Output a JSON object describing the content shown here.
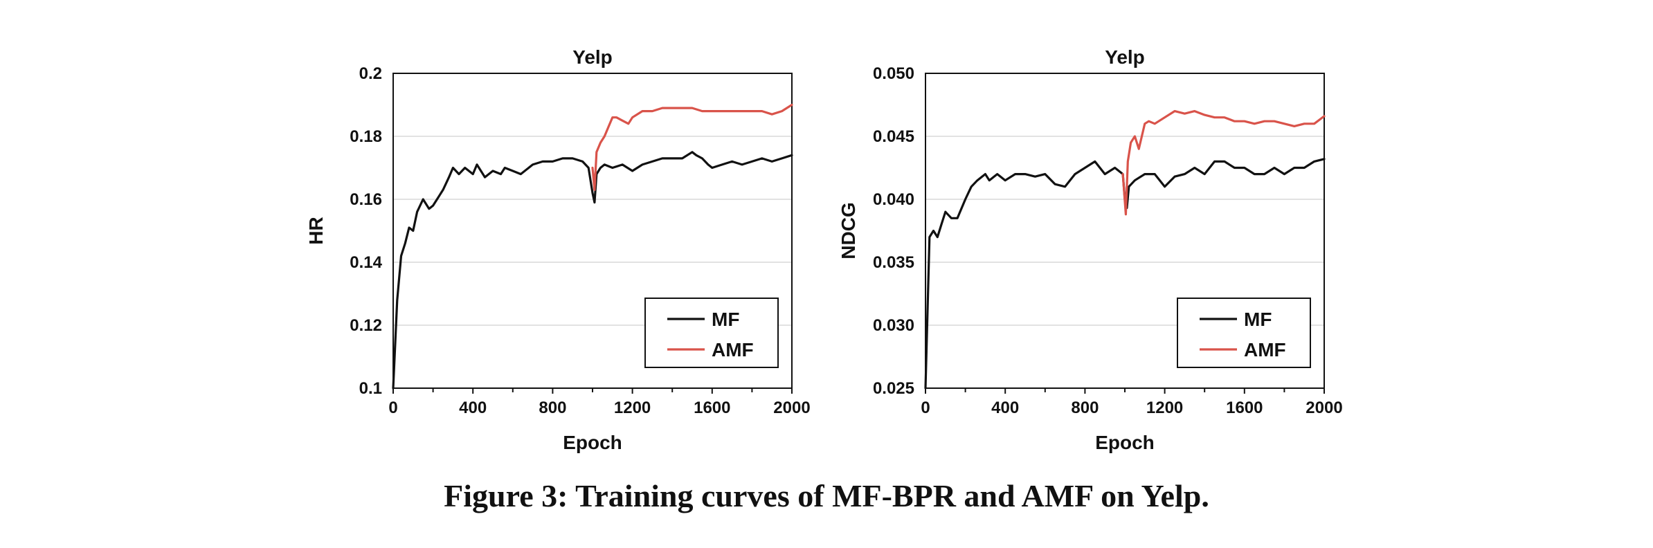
{
  "figure": {
    "caption": "Figure 3: Training curves of MF-BPR and AMF on Yelp."
  },
  "colors": {
    "MF": "#111111",
    "AMF": "#d9534a",
    "grid": "#d9d9d9",
    "frame": "#111111"
  },
  "chart_data": [
    {
      "type": "line",
      "title": "Yelp",
      "xlabel": "Epoch",
      "ylabel": "HR",
      "xlim": [
        0,
        2000
      ],
      "ylim": [
        0.1,
        0.2
      ],
      "x_ticks": [
        0,
        400,
        800,
        1200,
        1600,
        2000
      ],
      "y_ticks": [
        0.1,
        0.12,
        0.14,
        0.16,
        0.18,
        0.2
      ],
      "y_tick_labels": [
        "0.1",
        "0.12",
        "0.14",
        "0.16",
        "0.18",
        "0.2"
      ],
      "grid": "horizontal",
      "legend": {
        "position": "bottom-right",
        "entries": [
          "MF",
          "AMF"
        ]
      },
      "series": [
        {
          "name": "MF",
          "color": "#111111",
          "x": [
            0,
            20,
            40,
            60,
            80,
            100,
            120,
            150,
            180,
            200,
            250,
            280,
            300,
            330,
            360,
            400,
            420,
            460,
            500,
            540,
            560,
            600,
            640,
            700,
            750,
            800,
            850,
            900,
            950,
            980,
            1000,
            1010,
            1020,
            1040,
            1060,
            1100,
            1150,
            1200,
            1250,
            1300,
            1350,
            1400,
            1450,
            1500,
            1520,
            1550,
            1580,
            1600,
            1650,
            1700,
            1750,
            1800,
            1850,
            1900,
            1950,
            2000
          ],
          "y": [
            0.1,
            0.128,
            0.142,
            0.146,
            0.151,
            0.15,
            0.156,
            0.16,
            0.157,
            0.158,
            0.163,
            0.167,
            0.17,
            0.168,
            0.17,
            0.168,
            0.171,
            0.167,
            0.169,
            0.168,
            0.17,
            0.169,
            0.168,
            0.171,
            0.172,
            0.172,
            0.173,
            0.173,
            0.172,
            0.17,
            0.162,
            0.159,
            0.168,
            0.17,
            0.171,
            0.17,
            0.171,
            0.169,
            0.171,
            0.172,
            0.173,
            0.173,
            0.173,
            0.175,
            0.174,
            0.173,
            0.171,
            0.17,
            0.171,
            0.172,
            0.171,
            0.172,
            0.173,
            0.172,
            0.173,
            0.174
          ]
        },
        {
          "name": "AMF",
          "color": "#d9534a",
          "x": [
            1000,
            1010,
            1020,
            1040,
            1060,
            1080,
            1100,
            1120,
            1150,
            1180,
            1200,
            1250,
            1300,
            1350,
            1400,
            1450,
            1500,
            1550,
            1600,
            1650,
            1700,
            1750,
            1800,
            1850,
            1900,
            1950,
            2000
          ],
          "y": [
            0.17,
            0.163,
            0.175,
            0.178,
            0.18,
            0.183,
            0.186,
            0.186,
            0.185,
            0.184,
            0.186,
            0.188,
            0.188,
            0.189,
            0.189,
            0.189,
            0.189,
            0.188,
            0.188,
            0.188,
            0.188,
            0.188,
            0.188,
            0.188,
            0.187,
            0.188,
            0.19
          ]
        }
      ]
    },
    {
      "type": "line",
      "title": "Yelp",
      "xlabel": "Epoch",
      "ylabel": "NDCG",
      "xlim": [
        0,
        2000
      ],
      "ylim": [
        0.025,
        0.05
      ],
      "x_ticks": [
        0,
        400,
        800,
        1200,
        1600,
        2000
      ],
      "y_ticks": [
        0.025,
        0.03,
        0.035,
        0.04,
        0.045,
        0.05
      ],
      "y_tick_labels": [
        "0.025",
        "0.030",
        "0.035",
        "0.040",
        "0.045",
        "0.050"
      ],
      "grid": "horizontal",
      "legend": {
        "position": "bottom-right",
        "entries": [
          "MF",
          "AMF"
        ]
      },
      "series": [
        {
          "name": "MF",
          "color": "#111111",
          "x": [
            0,
            20,
            40,
            60,
            80,
            100,
            130,
            160,
            200,
            230,
            260,
            300,
            320,
            360,
            400,
            450,
            500,
            550,
            600,
            650,
            700,
            750,
            800,
            850,
            900,
            950,
            990,
            1000,
            1010,
            1020,
            1050,
            1100,
            1150,
            1200,
            1250,
            1300,
            1350,
            1400,
            1450,
            1500,
            1550,
            1600,
            1650,
            1700,
            1750,
            1800,
            1850,
            1900,
            1950,
            2000
          ],
          "y": [
            0.025,
            0.037,
            0.0375,
            0.037,
            0.038,
            0.039,
            0.0385,
            0.0385,
            0.04,
            0.041,
            0.0415,
            0.042,
            0.0415,
            0.042,
            0.0415,
            0.042,
            0.042,
            0.0418,
            0.042,
            0.0412,
            0.041,
            0.042,
            0.0425,
            0.043,
            0.042,
            0.0425,
            0.042,
            0.04,
            0.0393,
            0.041,
            0.0415,
            0.042,
            0.042,
            0.041,
            0.0418,
            0.042,
            0.0425,
            0.042,
            0.043,
            0.043,
            0.0425,
            0.0425,
            0.042,
            0.042,
            0.0425,
            0.042,
            0.0425,
            0.0425,
            0.043,
            0.0432
          ]
        },
        {
          "name": "AMF",
          "color": "#d9534a",
          "x": [
            990,
            1005,
            1015,
            1030,
            1050,
            1070,
            1100,
            1120,
            1150,
            1200,
            1250,
            1300,
            1350,
            1400,
            1450,
            1500,
            1550,
            1600,
            1650,
            1700,
            1750,
            1800,
            1850,
            1900,
            1950,
            2000
          ],
          "y": [
            0.042,
            0.0388,
            0.043,
            0.0445,
            0.045,
            0.044,
            0.046,
            0.0462,
            0.046,
            0.0465,
            0.047,
            0.0468,
            0.047,
            0.0467,
            0.0465,
            0.0465,
            0.0462,
            0.0462,
            0.046,
            0.0462,
            0.0462,
            0.046,
            0.0458,
            0.046,
            0.046,
            0.0466
          ]
        }
      ]
    }
  ]
}
